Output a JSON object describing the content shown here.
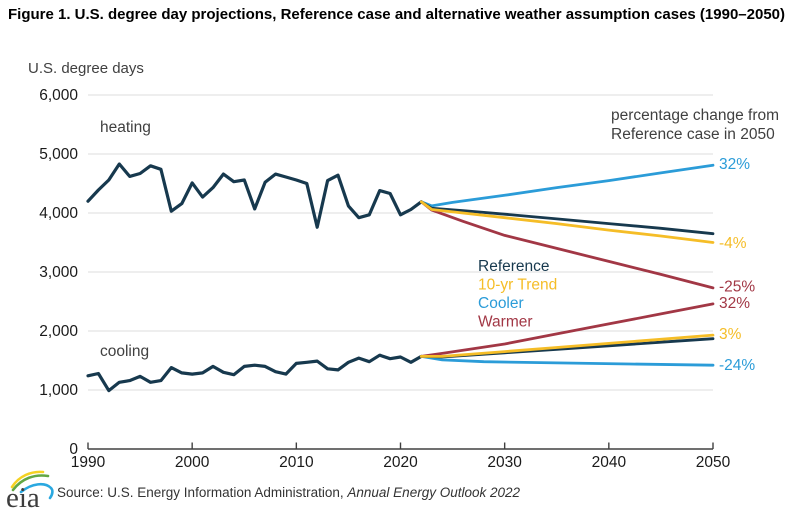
{
  "header": {
    "title": "Figure 1. U.S. degree day projections, Reference case and alternative weather assumption cases (1990–2050)",
    "unit_label": "U.S. degree days"
  },
  "colors": {
    "reference_navy": "#17394E",
    "trend_yellow": "#F5BD27",
    "cooler_blue": "#2B9CD8",
    "warmer_red": "#A23745",
    "gridline": "#DEDEDE",
    "axis": "#404040",
    "annotation_gray": "#404040",
    "tick_label": "#1a1a1a"
  },
  "chart_data": {
    "type": "line",
    "title": "Figure 1. U.S. degree day projections, Reference case and alternative weather assumption cases (1990–2050)",
    "xlabel": "",
    "ylabel": "U.S. degree days",
    "xlim": [
      1990,
      2050
    ],
    "ylim": [
      0,
      6000
    ],
    "grid": true,
    "x_ticks": [
      1990,
      2000,
      2010,
      2020,
      2030,
      2040,
      2050
    ],
    "y_ticks": [
      {
        "value": 0,
        "label": "0"
      },
      {
        "value": 1000,
        "label": "1,000"
      },
      {
        "value": 2000,
        "label": "2,000"
      },
      {
        "value": 3000,
        "label": "3,000"
      },
      {
        "value": 4000,
        "label": "4,000"
      },
      {
        "value": 5000,
        "label": "5,000"
      },
      {
        "value": 6000,
        "label": "6,000"
      }
    ],
    "series": [
      {
        "id": "heating-history",
        "name": "Heating history",
        "color": "#17394E",
        "width": 3.2,
        "x": [
          1990,
          1991,
          1992,
          1993,
          1994,
          1995,
          1996,
          1997,
          1998,
          1999,
          2000,
          2001,
          2002,
          2003,
          2004,
          2005,
          2006,
          2007,
          2008,
          2009,
          2010,
          2011,
          2012,
          2013,
          2014,
          2015,
          2016,
          2017,
          2018,
          2019,
          2020,
          2021,
          2022
        ],
        "values": [
          4200,
          4390,
          4560,
          4830,
          4620,
          4670,
          4800,
          4740,
          4030,
          4160,
          4510,
          4270,
          4430,
          4660,
          4530,
          4560,
          4070,
          4520,
          4660,
          4610,
          4560,
          4500,
          3760,
          4550,
          4640,
          4120,
          3920,
          3970,
          4380,
          4330,
          3970,
          4060,
          4190
        ]
      },
      {
        "id": "heating-cooler",
        "name": "Cooler (heating)",
        "color": "#2B9CD8",
        "width": 2.8,
        "x": [
          2022,
          2023,
          2025,
          2030,
          2035,
          2040,
          2045,
          2050
        ],
        "values": [
          4190,
          4120,
          4180,
          4300,
          4430,
          4550,
          4680,
          4810
        ]
      },
      {
        "id": "heating-warmer",
        "name": "Warmer (heating)",
        "color": "#A23745",
        "width": 2.8,
        "x": [
          2022,
          2023,
          2026,
          2030,
          2035,
          2040,
          2045,
          2050
        ],
        "values": [
          4190,
          4050,
          3860,
          3620,
          3400,
          3180,
          2960,
          2730
        ]
      },
      {
        "id": "heating-reference",
        "name": "Reference (heating)",
        "color": "#17394E",
        "width": 2.8,
        "x": [
          2022,
          2023,
          2026,
          2030,
          2035,
          2040,
          2045,
          2050
        ],
        "values": [
          4190,
          4080,
          4040,
          3980,
          3900,
          3820,
          3740,
          3650
        ]
      },
      {
        "id": "heating-10yr-trend",
        "name": "10-yr Trend (heating)",
        "color": "#F5BD27",
        "width": 2.8,
        "x": [
          2022,
          2023,
          2026,
          2030,
          2035,
          2040,
          2045,
          2050
        ],
        "values": [
          4190,
          4060,
          4000,
          3920,
          3820,
          3710,
          3610,
          3500
        ]
      },
      {
        "id": "cooling-history",
        "name": "Cooling history",
        "color": "#17394E",
        "width": 3.2,
        "x": [
          1990,
          1991,
          1992,
          1993,
          1994,
          1995,
          1996,
          1997,
          1998,
          1999,
          2000,
          2001,
          2002,
          2003,
          2004,
          2005,
          2006,
          2007,
          2008,
          2009,
          2010,
          2011,
          2012,
          2013,
          2014,
          2015,
          2016,
          2017,
          2018,
          2019,
          2020,
          2021,
          2022
        ],
        "values": [
          1240,
          1280,
          990,
          1130,
          1160,
          1230,
          1130,
          1160,
          1380,
          1290,
          1270,
          1290,
          1400,
          1300,
          1260,
          1400,
          1420,
          1400,
          1310,
          1270,
          1450,
          1470,
          1490,
          1360,
          1340,
          1470,
          1540,
          1480,
          1590,
          1530,
          1560,
          1470,
          1570
        ]
      },
      {
        "id": "cooling-cooler",
        "name": "Cooler (cooling)",
        "color": "#2B9CD8",
        "width": 2.8,
        "x": [
          2022,
          2024,
          2028,
          2035,
          2042,
          2050
        ],
        "values": [
          1570,
          1510,
          1480,
          1460,
          1440,
          1420
        ]
      },
      {
        "id": "cooling-warmer",
        "name": "Warmer (cooling)",
        "color": "#A23745",
        "width": 2.8,
        "x": [
          2022,
          2024,
          2030,
          2035,
          2040,
          2045,
          2050
        ],
        "values": [
          1570,
          1620,
          1780,
          1950,
          2120,
          2290,
          2460
        ]
      },
      {
        "id": "cooling-reference",
        "name": "Reference (cooling)",
        "color": "#17394E",
        "width": 2.8,
        "x": [
          2022,
          2024,
          2030,
          2035,
          2040,
          2045,
          2050
        ],
        "values": [
          1570,
          1560,
          1630,
          1690,
          1750,
          1810,
          1870
        ]
      },
      {
        "id": "cooling-10yr-trend",
        "name": "10-yr Trend (cooling)",
        "color": "#F5BD27",
        "width": 2.8,
        "x": [
          2022,
          2024,
          2030,
          2035,
          2040,
          2045,
          2050
        ],
        "values": [
          1570,
          1570,
          1650,
          1720,
          1790,
          1860,
          1930
        ]
      }
    ],
    "group_labels": [
      {
        "text": "heating",
        "color": "#404040"
      },
      {
        "text": "cooling",
        "color": "#404040"
      }
    ],
    "note_lines": [
      "percentage change from",
      "Reference case in 2050"
    ],
    "legend": {
      "position": "center-right",
      "items": [
        {
          "label": "Reference",
          "color": "#17394E"
        },
        {
          "label": "10-yr Trend",
          "color": "#F5BD27"
        },
        {
          "label": "Cooler",
          "color": "#2B9CD8"
        },
        {
          "label": "Warmer",
          "color": "#A23745"
        }
      ]
    },
    "pct_labels": [
      {
        "text": "32%",
        "color": "#2B9CD8",
        "at_value": 4840,
        "series": "heating-cooler"
      },
      {
        "text": "-4%",
        "color": "#F5BD27",
        "at_value": 3500,
        "series": "heating-10yr-trend"
      },
      {
        "text": "-25%",
        "color": "#A23745",
        "at_value": 2760,
        "series": "heating-warmer"
      },
      {
        "text": "32%",
        "color": "#A23745",
        "at_value": 2480,
        "series": "cooling-warmer"
      },
      {
        "text": "3%",
        "color": "#F5BD27",
        "at_value": 1960,
        "series": "cooling-10yr-trend"
      },
      {
        "text": "-24%",
        "color": "#2B9CD8",
        "at_value": 1430,
        "series": "cooling-cooler"
      }
    ]
  },
  "footer": {
    "source_prefix": "Source: U.S. Energy Information Administration, ",
    "source_italic": "Annual Energy Outlook 2022",
    "logo_text": "eia"
  }
}
